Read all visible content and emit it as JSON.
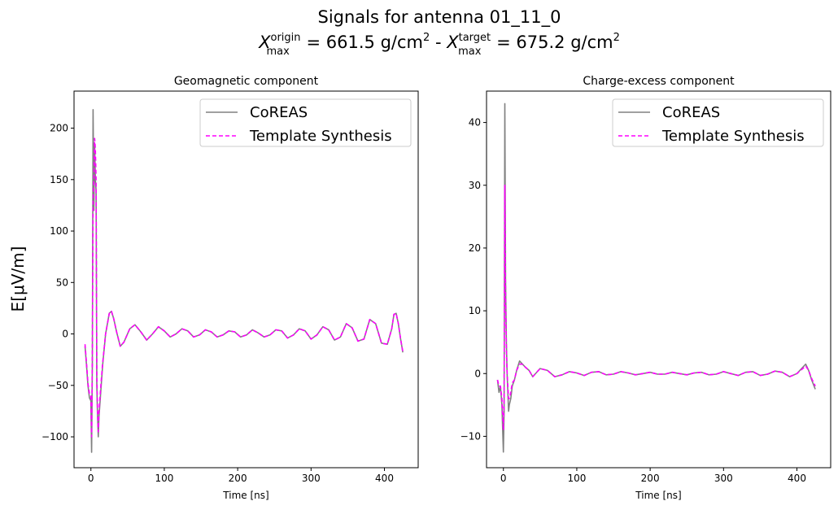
{
  "figure": {
    "title_line1": "Signals for antenna 01_11_0",
    "title_line2": {
      "x_symbol": "X",
      "origin_sup": "origin",
      "origin_sub": "max",
      "origin_value": " =  661.5 g/cm",
      "target_sup": "target",
      "target_sub": "max",
      "target_value": " =  675.2 g/cm",
      "separator": " -  ",
      "exponent": "2"
    },
    "shared_ylabel": "E[μV/m]"
  },
  "colors": {
    "coreas": "#808080",
    "template_synthesis": "#ff00ff",
    "axes": "#000000",
    "background": "#ffffff"
  },
  "chart_data": [
    {
      "type": "line",
      "title": "Geomagnetic component",
      "xlabel": "Time [ns]",
      "ylabel": "E[μV/m]",
      "xlim": [
        -23,
        446
      ],
      "ylim": [
        -130,
        236
      ],
      "xticks": [
        0,
        100,
        200,
        300,
        400
      ],
      "yticks": [
        -100,
        -50,
        0,
        50,
        100,
        150,
        200
      ],
      "legend_location": "upper right",
      "grid": false,
      "series": [
        {
          "name": "CoREAS",
          "style": "solid",
          "x": [
            -8,
            -6,
            -4,
            -2,
            0,
            1,
            2,
            3,
            4,
            5,
            6,
            7,
            8,
            9,
            10,
            11,
            13,
            16,
            20,
            25,
            28,
            31,
            35,
            40,
            45,
            53,
            60,
            68,
            76,
            84,
            92,
            100,
            108,
            116,
            124,
            132,
            140,
            148,
            156,
            164,
            172,
            180,
            188,
            196,
            204,
            212,
            220,
            228,
            236,
            244,
            252,
            260,
            268,
            276,
            284,
            292,
            300,
            308,
            316,
            324,
            332,
            340,
            348,
            356,
            364,
            372,
            380,
            388,
            396,
            404,
            410,
            413,
            416,
            419,
            422,
            425
          ],
          "y": [
            -12,
            -30,
            -50,
            -62,
            -65,
            -115,
            -30,
            218,
            120,
            185,
            150,
            140,
            -50,
            -80,
            -100,
            -80,
            -60,
            -30,
            0,
            20,
            22,
            15,
            2,
            -12,
            -8,
            5,
            9,
            2,
            -6,
            0,
            7,
            3,
            -3,
            0,
            5,
            3,
            -3,
            -1,
            4,
            2,
            -3,
            -1,
            3,
            2,
            -3,
            -1,
            4,
            1,
            -3,
            -1,
            4,
            3,
            -4,
            -1,
            5,
            3,
            -5,
            -1,
            7,
            4,
            -6,
            -3,
            10,
            6,
            -7,
            -5,
            14,
            10,
            -9,
            -10,
            5,
            19,
            20,
            10,
            -5,
            -18
          ]
        },
        {
          "name": "Template Synthesis",
          "style": "dashed",
          "x": [
            -8,
            -6,
            -4,
            -2,
            0,
            1,
            2,
            3,
            4,
            5,
            6,
            7,
            8,
            9,
            10,
            11,
            13,
            16,
            20,
            25,
            28,
            31,
            35,
            40,
            45,
            53,
            60,
            68,
            76,
            84,
            92,
            100,
            108,
            116,
            124,
            132,
            140,
            148,
            156,
            164,
            172,
            180,
            188,
            196,
            204,
            212,
            220,
            228,
            236,
            244,
            252,
            260,
            268,
            276,
            284,
            292,
            300,
            308,
            316,
            324,
            332,
            340,
            348,
            356,
            364,
            372,
            380,
            388,
            396,
            404,
            410,
            413,
            416,
            419,
            422,
            425
          ],
          "y": [
            -10,
            -28,
            -48,
            -58,
            -60,
            -100,
            -20,
            130,
            150,
            190,
            180,
            150,
            -40,
            -75,
            -95,
            -75,
            -55,
            -28,
            0,
            20,
            22,
            15,
            2,
            -12,
            -8,
            5,
            9,
            2,
            -6,
            0,
            7,
            3,
            -3,
            0,
            5,
            3,
            -3,
            -1,
            4,
            2,
            -3,
            -1,
            3,
            2,
            -3,
            -1,
            4,
            1,
            -3,
            -1,
            4,
            3,
            -4,
            -1,
            5,
            3,
            -5,
            -1,
            7,
            4,
            -6,
            -3,
            10,
            6,
            -7,
            -5,
            14,
            10,
            -9,
            -10,
            5,
            19,
            20,
            10,
            -5,
            -17
          ]
        }
      ]
    },
    {
      "type": "line",
      "title": "Charge-excess component",
      "xlabel": "Time [ns]",
      "ylabel": "",
      "xlim": [
        -23,
        446
      ],
      "ylim": [
        -15,
        45
      ],
      "xticks": [
        0,
        100,
        200,
        300,
        400
      ],
      "yticks": [
        -10,
        0,
        10,
        20,
        30,
        40
      ],
      "legend_location": "upper right",
      "grid": false,
      "series": [
        {
          "name": "CoREAS",
          "style": "solid",
          "x": [
            -8,
            -6,
            -4,
            -2,
            0,
            1,
            2,
            3,
            4,
            5,
            6,
            7,
            8,
            10,
            12,
            15,
            18,
            22,
            26,
            30,
            35,
            40,
            50,
            60,
            70,
            80,
            90,
            100,
            110,
            120,
            130,
            140,
            150,
            160,
            170,
            180,
            190,
            200,
            210,
            220,
            230,
            240,
            250,
            260,
            270,
            280,
            290,
            300,
            310,
            320,
            330,
            340,
            350,
            360,
            370,
            380,
            390,
            400,
            408,
            412,
            416,
            420,
            425
          ],
          "y": [
            -1,
            -3,
            -2,
            -5,
            -12.5,
            -6,
            43,
            15,
            5,
            0,
            -3,
            -6,
            -5,
            -4,
            -2,
            -1,
            0.5,
            2,
            1.5,
            1,
            0.5,
            -0.5,
            0.8,
            0.5,
            -0.5,
            -0.2,
            0.3,
            0.1,
            -0.3,
            0.2,
            0.3,
            -0.2,
            -0.1,
            0.3,
            0.1,
            -0.2,
            0,
            0.2,
            -0.1,
            -0.1,
            0.2,
            0,
            -0.2,
            0.1,
            0.2,
            -0.2,
            -0.1,
            0.3,
            0,
            -0.3,
            0.2,
            0.3,
            -0.3,
            -0.1,
            0.4,
            0.2,
            -0.5,
            0,
            1,
            1.5,
            0.5,
            -1,
            -2.5
          ]
        },
        {
          "name": "Template Synthesis",
          "style": "dashed",
          "x": [
            -8,
            -6,
            -4,
            -2,
            0,
            1,
            2,
            3,
            4,
            5,
            6,
            7,
            8,
            10,
            12,
            15,
            18,
            22,
            26,
            30,
            35,
            40,
            50,
            60,
            70,
            80,
            90,
            100,
            110,
            120,
            130,
            140,
            150,
            160,
            170,
            180,
            190,
            200,
            210,
            220,
            230,
            240,
            250,
            260,
            270,
            280,
            290,
            300,
            310,
            320,
            330,
            340,
            350,
            360,
            370,
            380,
            390,
            400,
            408,
            412,
            416,
            420,
            425
          ],
          "y": [
            -1,
            -2,
            -2,
            -4,
            -9,
            -4,
            30,
            12,
            4,
            0,
            -2,
            -4,
            -4,
            -3,
            -1.5,
            -1,
            0.5,
            1.5,
            1.5,
            1,
            0.5,
            -0.5,
            0.8,
            0.5,
            -0.5,
            -0.2,
            0.3,
            0.1,
            -0.3,
            0.2,
            0.3,
            -0.2,
            -0.1,
            0.3,
            0.1,
            -0.2,
            0,
            0.2,
            -0.1,
            -0.1,
            0.2,
            0,
            -0.2,
            0.1,
            0.2,
            -0.2,
            -0.1,
            0.3,
            0,
            -0.3,
            0.2,
            0.3,
            -0.3,
            -0.1,
            0.4,
            0.2,
            -0.5,
            0,
            0.8,
            1.2,
            0.5,
            -0.8,
            -2
          ]
        }
      ]
    }
  ]
}
